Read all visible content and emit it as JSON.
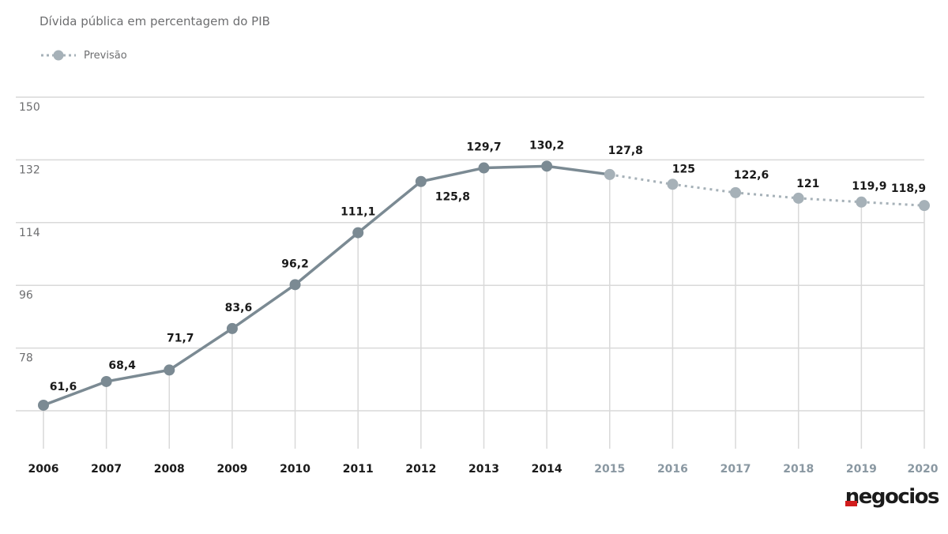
{
  "subtitle": "Dívida pública em percentagem do PIB",
  "legend": {
    "label": "Previsão"
  },
  "logo": "negocios",
  "colors": {
    "actual": "#7b8a93",
    "forecast": "#a6b1b8",
    "grid": "#d9d9d9",
    "year_actual": "#1a1a1a",
    "year_forecast": "#8a98a2"
  },
  "chart_data": {
    "type": "line",
    "categories": [
      "2006",
      "2007",
      "2008",
      "2009",
      "2010",
      "2011",
      "2012",
      "2013",
      "2014",
      "2015",
      "2016",
      "2017",
      "2018",
      "2019",
      "2020"
    ],
    "values": [
      61.6,
      68.4,
      71.7,
      83.6,
      96.2,
      111.1,
      125.8,
      129.7,
      130.2,
      127.8,
      125,
      122.6,
      121,
      119.9,
      118.9
    ],
    "value_labels": [
      "61,6",
      "68,4",
      "71,7",
      "83,6",
      "96,2",
      "111,1",
      "125,8",
      "129,7",
      "130,2",
      "127,8",
      "125",
      "122,6",
      "121",
      "119,9",
      "118,9"
    ],
    "forecast_from": "2015",
    "yticks": [
      "150",
      "132",
      "114",
      "96",
      "78"
    ],
    "ylim": [
      60,
      150
    ],
    "grid": true,
    "legend_position": "top-left"
  }
}
